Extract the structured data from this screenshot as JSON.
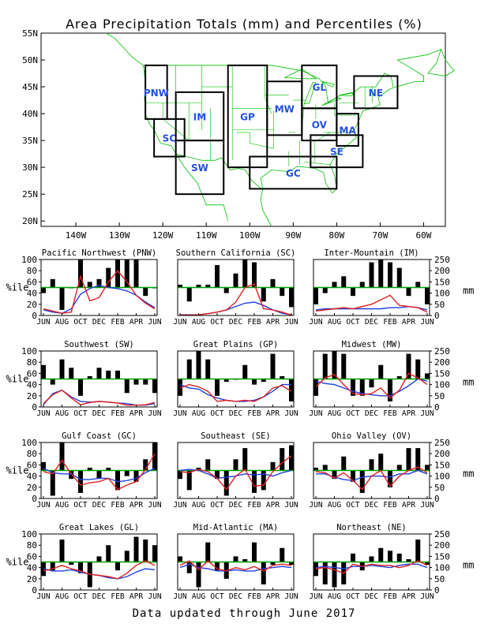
{
  "title": "Area Precipitation Totals (mm) and Percentiles (%)",
  "footer": "Data updated through June 2017",
  "map": {
    "lat_ticks": [
      "55N",
      "50N",
      "45N",
      "40N",
      "35N",
      "30N",
      "25N",
      "20N"
    ],
    "lon_ticks": [
      "140W",
      "130W",
      "120W",
      "110W",
      "100W",
      "90W",
      "80W",
      "70W",
      "60W"
    ],
    "regions": [
      {
        "code": "PNW",
        "lon": [
          -124,
          -119
        ],
        "lat": [
          39,
          49
        ]
      },
      {
        "code": "SC",
        "lon": [
          -122,
          -115
        ],
        "lat": [
          32,
          39
        ]
      },
      {
        "code": "IM",
        "lon": [
          -117,
          -106
        ],
        "lat": [
          35,
          44
        ]
      },
      {
        "code": "SW",
        "lon": [
          -117,
          -106
        ],
        "lat": [
          25,
          35
        ]
      },
      {
        "code": "GP",
        "lon": [
          -105,
          -96
        ],
        "lat": [
          30,
          49
        ]
      },
      {
        "code": "MW",
        "lon": [
          -96,
          -88
        ],
        "lat": [
          36,
          46
        ]
      },
      {
        "code": "GL",
        "lon": [
          -88,
          -80
        ],
        "lat": [
          41,
          49
        ]
      },
      {
        "code": "OV",
        "lon": [
          -88,
          -80
        ],
        "lat": [
          35,
          41
        ]
      },
      {
        "code": "SE",
        "lon": [
          -86,
          -74
        ],
        "lat": [
          30,
          36
        ]
      },
      {
        "code": "MA",
        "lon": [
          -80,
          -75
        ],
        "lat": [
          34,
          40
        ]
      },
      {
        "code": "NE",
        "lon": [
          -76,
          -66
        ],
        "lat": [
          41,
          47
        ]
      },
      {
        "code": "GC",
        "lon": [
          -100,
          -80
        ],
        "lat": [
          26,
          32
        ]
      }
    ]
  },
  "chart_data": [
    {
      "type": "bar",
      "title": "Pacific Northwest (PNW)",
      "ylabel": "%ile",
      "y2label": "",
      "ylim": [
        0,
        100
      ],
      "y2lim": [
        0,
        250
      ],
      "months": [
        "JUN",
        "JUL",
        "AUG",
        "SEP",
        "OCT",
        "NOV",
        "DEC",
        "JAN",
        "FEB",
        "MAR",
        "APR",
        "MAY",
        "JUN"
      ],
      "xticks": [
        "JUN",
        "AUG",
        "OCT",
        "DEC",
        "FEB",
        "APR",
        "JUN"
      ],
      "percentile": [
        40,
        65,
        10,
        50,
        100,
        60,
        65,
        85,
        100,
        100,
        100,
        35,
        50
      ],
      "total_mm": [
        30,
        20,
        10,
        15,
        175,
        65,
        80,
        150,
        200,
        150,
        90,
        55,
        30
      ],
      "normal_mm": [
        25,
        15,
        10,
        30,
        95,
        120,
        135,
        125,
        120,
        110,
        90,
        60,
        35
      ]
    },
    {
      "type": "bar",
      "title": "Southern California (SC)",
      "ylabel": "",
      "y2label": "",
      "ylim": [
        0,
        100
      ],
      "y2lim": [
        0,
        250
      ],
      "months": [
        "JUN",
        "JUL",
        "AUG",
        "SEP",
        "OCT",
        "NOV",
        "DEC",
        "JAN",
        "FEB",
        "MAR",
        "APR",
        "MAY",
        "JUN"
      ],
      "xticks": [
        "JUN",
        "AUG",
        "OCT",
        "DEC",
        "FEB",
        "APR",
        "JUN"
      ],
      "percentile": [
        55,
        25,
        55,
        55,
        90,
        40,
        75,
        100,
        95,
        25,
        65,
        35,
        15
      ],
      "total_mm": [
        2,
        2,
        3,
        8,
        15,
        25,
        60,
        125,
        140,
        30,
        25,
        15,
        2
      ],
      "normal_mm": [
        3,
        3,
        4,
        8,
        15,
        25,
        40,
        55,
        60,
        45,
        25,
        10,
        3
      ]
    },
    {
      "type": "bar",
      "title": "Inter-Mountain (IM)",
      "ylabel": "",
      "y2label": "mm",
      "ylim": [
        0,
        100
      ],
      "y2lim": [
        0,
        250
      ],
      "months": [
        "JUN",
        "JUL",
        "AUG",
        "SEP",
        "OCT",
        "NOV",
        "DEC",
        "JAN",
        "FEB",
        "MAR",
        "APR",
        "MAY",
        "JUN"
      ],
      "xticks": [
        "JUN",
        "AUG",
        "OCT",
        "DEC",
        "FEB",
        "APR",
        "JUN"
      ],
      "percentile": [
        20,
        40,
        60,
        70,
        35,
        60,
        95,
        100,
        95,
        85,
        35,
        60,
        20
      ],
      "total_mm": [
        20,
        25,
        30,
        35,
        30,
        40,
        50,
        70,
        90,
        45,
        40,
        35,
        15
      ],
      "normal_mm": [
        25,
        30,
        30,
        30,
        30,
        30,
        30,
        30,
        35,
        35,
        40,
        35,
        25
      ]
    },
    {
      "type": "bar",
      "title": "Southwest (SW)",
      "ylabel": "%ile",
      "y2label": "",
      "ylim": [
        0,
        100
      ],
      "y2lim": [
        0,
        250
      ],
      "months": [
        "JUN",
        "JUL",
        "AUG",
        "SEP",
        "OCT",
        "NOV",
        "DEC",
        "JAN",
        "FEB",
        "MAR",
        "APR",
        "MAY",
        "JUN"
      ],
      "xticks": [
        "JUN",
        "AUG",
        "OCT",
        "DEC",
        "FEB",
        "APR",
        "JUN"
      ],
      "percentile": [
        75,
        40,
        85,
        70,
        20,
        55,
        70,
        65,
        65,
        25,
        40,
        40,
        25
      ],
      "total_mm": [
        15,
        55,
        75,
        40,
        10,
        20,
        25,
        22,
        18,
        8,
        8,
        10,
        20
      ],
      "normal_mm": [
        10,
        60,
        75,
        45,
        25,
        22,
        25,
        22,
        18,
        15,
        8,
        8,
        15
      ]
    },
    {
      "type": "bar",
      "title": "Great Plains (GP)",
      "ylabel": "",
      "y2label": "",
      "ylim": [
        0,
        100
      ],
      "y2lim": [
        0,
        250
      ],
      "months": [
        "JUN",
        "JUL",
        "AUG",
        "SEP",
        "OCT",
        "NOV",
        "DEC",
        "JAN",
        "FEB",
        "MAR",
        "APR",
        "MAY",
        "JUN"
      ],
      "xticks": [
        "JUN",
        "AUG",
        "OCT",
        "DEC",
        "FEB",
        "APR",
        "JUN"
      ],
      "percentile": [
        20,
        85,
        100,
        85,
        20,
        45,
        50,
        75,
        40,
        45,
        95,
        55,
        10
      ],
      "total_mm": [
        85,
        100,
        90,
        70,
        25,
        30,
        25,
        30,
        25,
        45,
        85,
        95,
        70
      ],
      "normal_mm": [
        100,
        85,
        80,
        55,
        40,
        30,
        25,
        25,
        30,
        45,
        70,
        100,
        100
      ]
    },
    {
      "type": "bar",
      "title": "Midwest (MW)",
      "ylabel": "",
      "y2label": "mm",
      "ylim": [
        0,
        100
      ],
      "y2lim": [
        0,
        250
      ],
      "months": [
        "JUN",
        "JUL",
        "AUG",
        "SEP",
        "OCT",
        "NOV",
        "DEC",
        "JAN",
        "FEB",
        "MAR",
        "APR",
        "MAY",
        "JUN"
      ],
      "xticks": [
        "JUN",
        "AUG",
        "OCT",
        "DEC",
        "FEB",
        "APR",
        "JUN"
      ],
      "percentile": [
        20,
        95,
        100,
        95,
        20,
        20,
        35,
        75,
        10,
        55,
        95,
        85,
        60
      ],
      "total_mm": [
        90,
        130,
        145,
        100,
        60,
        55,
        60,
        85,
        40,
        75,
        150,
        130,
        100
      ],
      "normal_mm": [
        115,
        105,
        100,
        85,
        70,
        60,
        55,
        50,
        50,
        70,
        95,
        125,
        115
      ]
    },
    {
      "type": "bar",
      "title": "Gulf Coast (GC)",
      "ylabel": "%ile",
      "y2label": "",
      "ylim": [
        0,
        100
      ],
      "y2lim": [
        0,
        250
      ],
      "months": [
        "JUN",
        "JUL",
        "AUG",
        "SEP",
        "OCT",
        "NOV",
        "DEC",
        "JAN",
        "FEB",
        "MAR",
        "APR",
        "MAY",
        "JUN"
      ],
      "xticks": [
        "JUN",
        "AUG",
        "OCT",
        "DEC",
        "FEB",
        "APR",
        "JUN"
      ],
      "percentile": [
        65,
        5,
        100,
        35,
        10,
        55,
        35,
        55,
        15,
        40,
        30,
        70,
        100
      ],
      "total_mm": [
        120,
        110,
        170,
        110,
        60,
        70,
        75,
        90,
        40,
        60,
        75,
        130,
        200
      ],
      "normal_mm": [
        135,
        115,
        110,
        110,
        85,
        85,
        90,
        90,
        75,
        80,
        90,
        115,
        135
      ]
    },
    {
      "type": "bar",
      "title": "Southeast (SE)",
      "ylabel": "",
      "y2label": "",
      "ylim": [
        0,
        100
      ],
      "y2lim": [
        0,
        250
      ],
      "months": [
        "JUN",
        "JUL",
        "AUG",
        "SEP",
        "OCT",
        "NOV",
        "DEC",
        "JAN",
        "FEB",
        "MAR",
        "APR",
        "MAY",
        "JUN"
      ],
      "xticks": [
        "JUN",
        "AUG",
        "OCT",
        "DEC",
        "FEB",
        "APR",
        "JUN"
      ],
      "percentile": [
        35,
        15,
        55,
        70,
        35,
        5,
        70,
        90,
        10,
        15,
        65,
        90,
        95
      ],
      "total_mm": [
        120,
        115,
        130,
        120,
        90,
        40,
        100,
        130,
        55,
        60,
        120,
        160,
        190
      ],
      "normal_mm": [
        125,
        130,
        125,
        110,
        90,
        95,
        100,
        110,
        105,
        110,
        100,
        115,
        125
      ]
    },
    {
      "type": "bar",
      "title": "Ohio Valley (OV)",
      "ylabel": "",
      "y2label": "mm",
      "ylim": [
        0,
        100
      ],
      "y2lim": [
        0,
        250
      ],
      "months": [
        "JUN",
        "JUL",
        "AUG",
        "SEP",
        "OCT",
        "NOV",
        "DEC",
        "JAN",
        "FEB",
        "MAR",
        "APR",
        "MAY",
        "JUN"
      ],
      "xticks": [
        "JUN",
        "AUG",
        "OCT",
        "DEC",
        "FEB",
        "APR",
        "JUN"
      ],
      "percentile": [
        55,
        60,
        35,
        75,
        30,
        10,
        70,
        80,
        20,
        60,
        90,
        90,
        60
      ],
      "total_mm": [
        120,
        115,
        90,
        115,
        80,
        40,
        100,
        125,
        55,
        100,
        125,
        140,
        115
      ],
      "normal_mm": [
        110,
        110,
        95,
        85,
        80,
        95,
        100,
        100,
        95,
        110,
        110,
        125,
        110
      ]
    },
    {
      "type": "bar",
      "title": "Great Lakes (GL)",
      "ylabel": "%ile",
      "y2label": "",
      "ylim": [
        0,
        100
      ],
      "y2lim": [
        0,
        250
      ],
      "months": [
        "JUN",
        "JUL",
        "AUG",
        "SEP",
        "OCT",
        "NOV",
        "DEC",
        "JAN",
        "FEB",
        "MAR",
        "APR",
        "MAY",
        "JUN"
      ],
      "xticks": [
        "JUN",
        "AUG",
        "OCT",
        "DEC",
        "FEB",
        "APR",
        "JUN"
      ],
      "percentile": [
        25,
        35,
        90,
        45,
        30,
        5,
        60,
        80,
        35,
        70,
        95,
        90,
        80
      ],
      "total_mm": [
        85,
        95,
        110,
        95,
        85,
        70,
        65,
        60,
        50,
        75,
        110,
        130,
        110
      ],
      "normal_mm": [
        95,
        85,
        85,
        90,
        80,
        70,
        65,
        55,
        50,
        60,
        80,
        95,
        90
      ]
    },
    {
      "type": "bar",
      "title": "Mid-Atlantic (MA)",
      "ylabel": "",
      "y2label": "",
      "ylim": [
        0,
        100
      ],
      "y2lim": [
        0,
        250
      ],
      "months": [
        "JUN",
        "JUL",
        "AUG",
        "SEP",
        "OCT",
        "NOV",
        "DEC",
        "JAN",
        "FEB",
        "MAR",
        "APR",
        "MAY",
        "JUN"
      ],
      "xticks": [
        "JUN",
        "AUG",
        "OCT",
        "DEC",
        "FEB",
        "APR",
        "JUN"
      ],
      "percentile": [
        60,
        30,
        5,
        85,
        35,
        20,
        60,
        55,
        85,
        10,
        45,
        75,
        45
      ],
      "total_mm": [
        110,
        130,
        90,
        130,
        95,
        85,
        100,
        90,
        105,
        85,
        110,
        115,
        110
      ],
      "normal_mm": [
        100,
        115,
        100,
        95,
        85,
        85,
        90,
        85,
        85,
        95,
        100,
        105,
        100
      ]
    },
    {
      "type": "bar",
      "title": "Northeast (NE)",
      "ylabel": "",
      "y2label": "mm",
      "ylim": [
        0,
        100
      ],
      "y2lim": [
        0,
        250
      ],
      "months": [
        "JUN",
        "JUL",
        "AUG",
        "SEP",
        "OCT",
        "NOV",
        "DEC",
        "JAN",
        "FEB",
        "MAR",
        "APR",
        "MAY",
        "JUN"
      ],
      "xticks": [
        "JUN",
        "AUG",
        "OCT",
        "DEC",
        "FEB",
        "APR",
        "JUN"
      ],
      "percentile": [
        25,
        10,
        5,
        10,
        65,
        35,
        60,
        75,
        70,
        65,
        55,
        90,
        45
      ],
      "total_mm": [
        95,
        100,
        90,
        75,
        115,
        105,
        115,
        110,
        110,
        100,
        110,
        130,
        110
      ],
      "normal_mm": [
        100,
        105,
        100,
        95,
        105,
        105,
        110,
        105,
        100,
        110,
        115,
        115,
        100
      ]
    }
  ],
  "colors": {
    "bar": "#000000",
    "total_line": "#e02020",
    "normal_line": "#2040e0",
    "median_line": "#00a000",
    "map_line": "#00c000",
    "map_label": "#2050e0"
  }
}
